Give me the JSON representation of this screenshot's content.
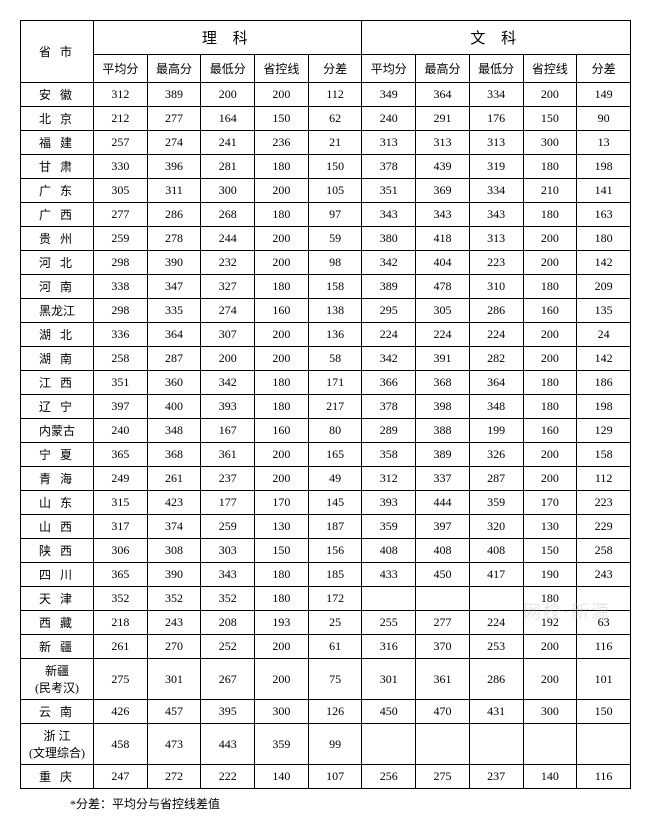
{
  "header": {
    "science": "理 科",
    "liberal": "文 科",
    "province": "省 市",
    "avg": "平均分",
    "max": "最高分",
    "min": "最低分",
    "ctrl": "省控线",
    "diff": "分差"
  },
  "footnote": "*分差：平均分与省控线差值",
  "watermark": "网校·新源",
  "rows": [
    {
      "p": "安 徽",
      "s": [
        "312",
        "389",
        "200",
        "200",
        "112"
      ],
      "l": [
        "349",
        "364",
        "334",
        "200",
        "149"
      ]
    },
    {
      "p": "北 京",
      "s": [
        "212",
        "277",
        "164",
        "150",
        "62"
      ],
      "l": [
        "240",
        "291",
        "176",
        "150",
        "90"
      ]
    },
    {
      "p": "福 建",
      "s": [
        "257",
        "274",
        "241",
        "236",
        "21"
      ],
      "l": [
        "313",
        "313",
        "313",
        "300",
        "13"
      ]
    },
    {
      "p": "甘 肃",
      "s": [
        "330",
        "396",
        "281",
        "180",
        "150"
      ],
      "l": [
        "378",
        "439",
        "319",
        "180",
        "198"
      ]
    },
    {
      "p": "广 东",
      "s": [
        "305",
        "311",
        "300",
        "200",
        "105"
      ],
      "l": [
        "351",
        "369",
        "334",
        "210",
        "141"
      ]
    },
    {
      "p": "广 西",
      "s": [
        "277",
        "286",
        "268",
        "180",
        "97"
      ],
      "l": [
        "343",
        "343",
        "343",
        "180",
        "163"
      ]
    },
    {
      "p": "贵 州",
      "s": [
        "259",
        "278",
        "244",
        "200",
        "59"
      ],
      "l": [
        "380",
        "418",
        "313",
        "200",
        "180"
      ]
    },
    {
      "p": "河 北",
      "s": [
        "298",
        "390",
        "232",
        "200",
        "98"
      ],
      "l": [
        "342",
        "404",
        "223",
        "200",
        "142"
      ]
    },
    {
      "p": "河 南",
      "s": [
        "338",
        "347",
        "327",
        "180",
        "158"
      ],
      "l": [
        "389",
        "478",
        "310",
        "180",
        "209"
      ]
    },
    {
      "p": "黑龙江",
      "tight": true,
      "s": [
        "298",
        "335",
        "274",
        "160",
        "138"
      ],
      "l": [
        "295",
        "305",
        "286",
        "160",
        "135"
      ]
    },
    {
      "p": "湖 北",
      "s": [
        "336",
        "364",
        "307",
        "200",
        "136"
      ],
      "l": [
        "224",
        "224",
        "224",
        "200",
        "24"
      ]
    },
    {
      "p": "湖 南",
      "s": [
        "258",
        "287",
        "200",
        "200",
        "58"
      ],
      "l": [
        "342",
        "391",
        "282",
        "200",
        "142"
      ]
    },
    {
      "p": "江 西",
      "s": [
        "351",
        "360",
        "342",
        "180",
        "171"
      ],
      "l": [
        "366",
        "368",
        "364",
        "180",
        "186"
      ]
    },
    {
      "p": "辽 宁",
      "s": [
        "397",
        "400",
        "393",
        "180",
        "217"
      ],
      "l": [
        "378",
        "398",
        "348",
        "180",
        "198"
      ]
    },
    {
      "p": "内蒙古",
      "tight": true,
      "s": [
        "240",
        "348",
        "167",
        "160",
        "80"
      ],
      "l": [
        "289",
        "388",
        "199",
        "160",
        "129"
      ]
    },
    {
      "p": "宁 夏",
      "s": [
        "365",
        "368",
        "361",
        "200",
        "165"
      ],
      "l": [
        "358",
        "389",
        "326",
        "200",
        "158"
      ]
    },
    {
      "p": "青 海",
      "s": [
        "249",
        "261",
        "237",
        "200",
        "49"
      ],
      "l": [
        "312",
        "337",
        "287",
        "200",
        "112"
      ]
    },
    {
      "p": "山 东",
      "s": [
        "315",
        "423",
        "177",
        "170",
        "145"
      ],
      "l": [
        "393",
        "444",
        "359",
        "170",
        "223"
      ]
    },
    {
      "p": "山 西",
      "s": [
        "317",
        "374",
        "259",
        "130",
        "187"
      ],
      "l": [
        "359",
        "397",
        "320",
        "130",
        "229"
      ]
    },
    {
      "p": "陕 西",
      "s": [
        "306",
        "308",
        "303",
        "150",
        "156"
      ],
      "l": [
        "408",
        "408",
        "408",
        "150",
        "258"
      ]
    },
    {
      "p": "四 川",
      "s": [
        "365",
        "390",
        "343",
        "180",
        "185"
      ],
      "l": [
        "433",
        "450",
        "417",
        "190",
        "243"
      ]
    },
    {
      "p": "天 津",
      "s": [
        "352",
        "352",
        "352",
        "180",
        "172"
      ],
      "l": [
        "",
        "",
        "",
        "180",
        ""
      ]
    },
    {
      "p": "西 藏",
      "s": [
        "218",
        "243",
        "208",
        "193",
        "25"
      ],
      "l": [
        "255",
        "277",
        "224",
        "192",
        "63"
      ]
    },
    {
      "p": "新 疆",
      "s": [
        "261",
        "270",
        "252",
        "200",
        "61"
      ],
      "l": [
        "316",
        "370",
        "253",
        "200",
        "116"
      ]
    },
    {
      "p": "新疆\n(民考汉)",
      "tight": true,
      "multi": true,
      "s": [
        "275",
        "301",
        "267",
        "200",
        "75"
      ],
      "l": [
        "301",
        "361",
        "286",
        "200",
        "101"
      ]
    },
    {
      "p": "云 南",
      "s": [
        "426",
        "457",
        "395",
        "300",
        "126"
      ],
      "l": [
        "450",
        "470",
        "431",
        "300",
        "150"
      ]
    },
    {
      "p": "浙 江\n(文理综合)",
      "tight": true,
      "multi": true,
      "s": [
        "458",
        "473",
        "443",
        "359",
        "99"
      ],
      "l": [
        "",
        "",
        "",
        "",
        ""
      ]
    },
    {
      "p": "重 庆",
      "s": [
        "247",
        "272",
        "222",
        "140",
        "107"
      ],
      "l": [
        "256",
        "275",
        "237",
        "140",
        "116"
      ]
    }
  ]
}
